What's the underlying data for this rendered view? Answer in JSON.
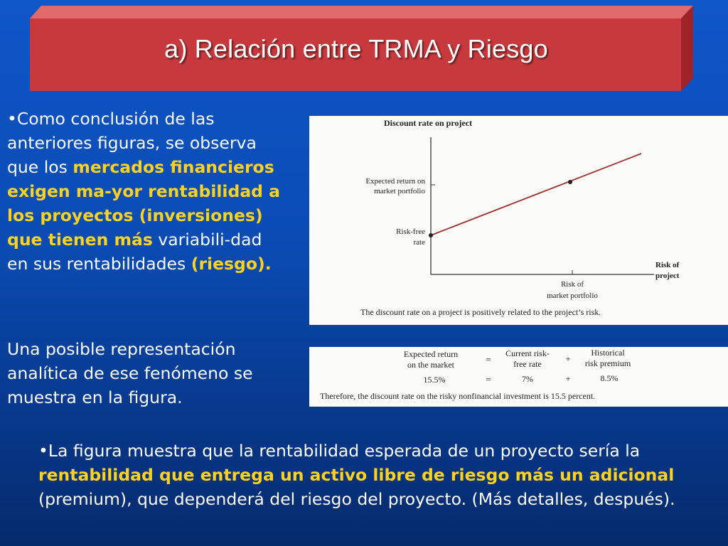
{
  "title": "a) Relación entre TRMA y Riesgo",
  "left_paragraph": {
    "bullet": "•",
    "part1": "Como conclusión de las anteriores figuras, se observa que los ",
    "highlight1": "mercados financieros exigen ma-yor rentabilidad a los proyectos (inversiones) que tienen más",
    "part2": " variabili-dad en sus rentabilidades ",
    "highlight2": "(riesgo)."
  },
  "second_paragraph": "Una posible representación analítica de ese fenómeno se muestra en la figura.",
  "bottom_paragraph": {
    "bullet": "•",
    "part1": "La figura muestra que la rentabilidad esperada de un proyecto sería la ",
    "highlight": "rentabilidad que entrega un activo libre de riesgo más un adicional",
    "part2": " (premium), que dependerá del riesgo del proyecto. (Más detalles, después)."
  },
  "figure1": {
    "y_axis_title": "Discount rate on project",
    "y_label_market_1": "Expected return on",
    "y_label_market_2": "market portfolio",
    "y_label_rf_1": "Risk-free",
    "y_label_rf_2": "rate",
    "x_axis_title_1": "Risk of",
    "x_axis_title_2": "project",
    "x_label_market_1": "Risk of",
    "x_label_market_2": "market portfolio",
    "caption": "The discount rate on a project is positively related to the project’s risk.",
    "line_color": "#a3302c"
  },
  "figure2": {
    "row1": {
      "c1a": "Expected return",
      "c1b": "on the market",
      "eq": "=",
      "c2a": "Current risk-",
      "c2b": "free rate",
      "plus": "+",
      "c3a": "Historical",
      "c3b": "risk premium"
    },
    "row2": {
      "v1": "15.5%",
      "eq": "=",
      "v2": "7%",
      "plus": "+",
      "v3": "8.5%"
    },
    "conclusion": "Therefore, the discount rate on the risky nonfinancial investment is 15.5 percent."
  },
  "colors": {
    "title_box": "#c7393c",
    "highlight": "#ffd21e",
    "background": "#0a4bb3"
  }
}
